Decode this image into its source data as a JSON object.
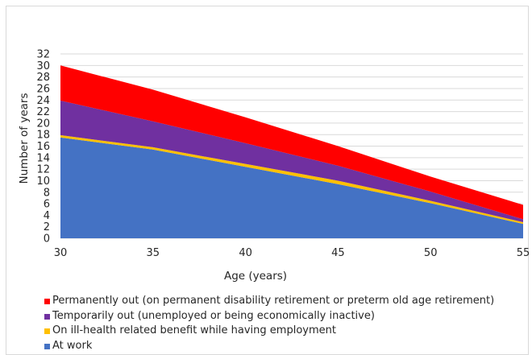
{
  "chart_data": {
    "type": "area",
    "stacked": true,
    "x": [
      30,
      35,
      40,
      45,
      50,
      55
    ],
    "xlabel": "Age (years)",
    "ylabel": "Number of years",
    "ylim": [
      0,
      32
    ],
    "yticks": [
      0,
      2,
      4,
      6,
      8,
      10,
      12,
      14,
      16,
      18,
      20,
      22,
      24,
      26,
      28,
      30,
      32
    ],
    "xticks": [
      30,
      35,
      40,
      45,
      50,
      55
    ],
    "grid": true,
    "legend_position": "bottom",
    "series": [
      {
        "name": "At work",
        "color": "#4472c4",
        "values": [
          17.5,
          15.4,
          12.4,
          9.4,
          6.1,
          2.5
        ]
      },
      {
        "name": "On ill-health related benefit while having employment",
        "color": "#ffc000",
        "values": [
          0.4,
          0.4,
          0.5,
          0.6,
          0.4,
          0.3
        ]
      },
      {
        "name": "Temporarily out (unemployed or being economically inactive)",
        "color": "#7030a0",
        "values": [
          6.0,
          4.5,
          3.6,
          2.6,
          1.6,
          0.5
        ]
      },
      {
        "name": "Permanently out (on permanent disability retirement or preterm old age retirement)",
        "color": "#ff0000",
        "values": [
          6.1,
          5.5,
          4.5,
          3.4,
          2.6,
          2.5
        ]
      }
    ]
  }
}
